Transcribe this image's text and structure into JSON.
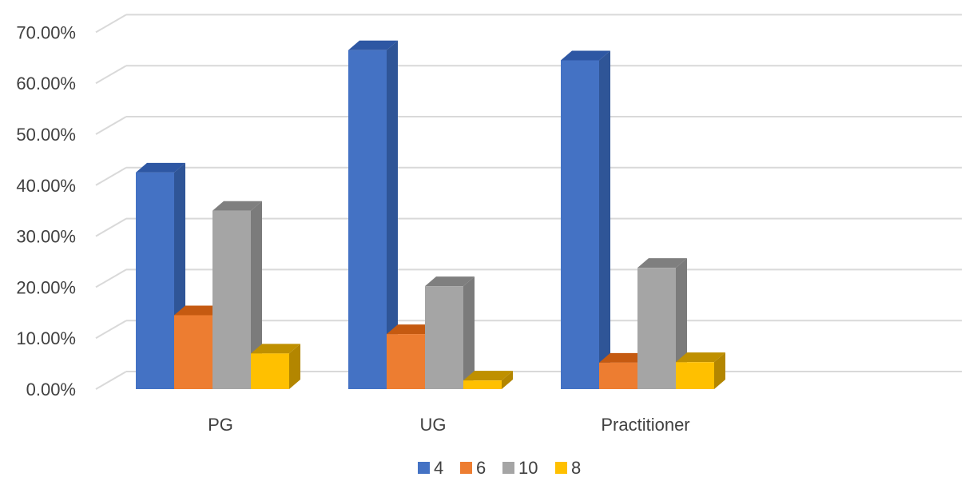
{
  "chart_data": {
    "type": "bar",
    "variant": "3d-clustered-column",
    "categories": [
      "PG",
      "UG",
      "Practitioner"
    ],
    "series": [
      {
        "name": "4",
        "values": [
          42.5,
          66.5,
          64.5
        ],
        "color": "#4472C4",
        "side": "#2F5597",
        "top": "#2E57A3"
      },
      {
        "name": "6",
        "values": [
          14.5,
          10.8,
          5.2
        ],
        "color": "#ED7D31",
        "side": "#B5591B",
        "top": "#C55A11"
      },
      {
        "name": "10",
        "values": [
          35.0,
          20.2,
          23.8
        ],
        "color": "#A5A5A5",
        "side": "#7B7B7B",
        "top": "#7F7F7F"
      },
      {
        "name": "8",
        "values": [
          7.0,
          1.7,
          5.3
        ],
        "color": "#FFC000",
        "side": "#B38600",
        "top": "#BF9000"
      }
    ],
    "yticks": [
      "0.00%",
      "10.00%",
      "20.00%",
      "30.00%",
      "40.00%",
      "50.00%",
      "60.00%",
      "70.00%"
    ],
    "ylim": [
      0,
      70
    ],
    "title": "",
    "xlabel": "",
    "ylabel": "",
    "grid": true,
    "legend": "bottom"
  }
}
